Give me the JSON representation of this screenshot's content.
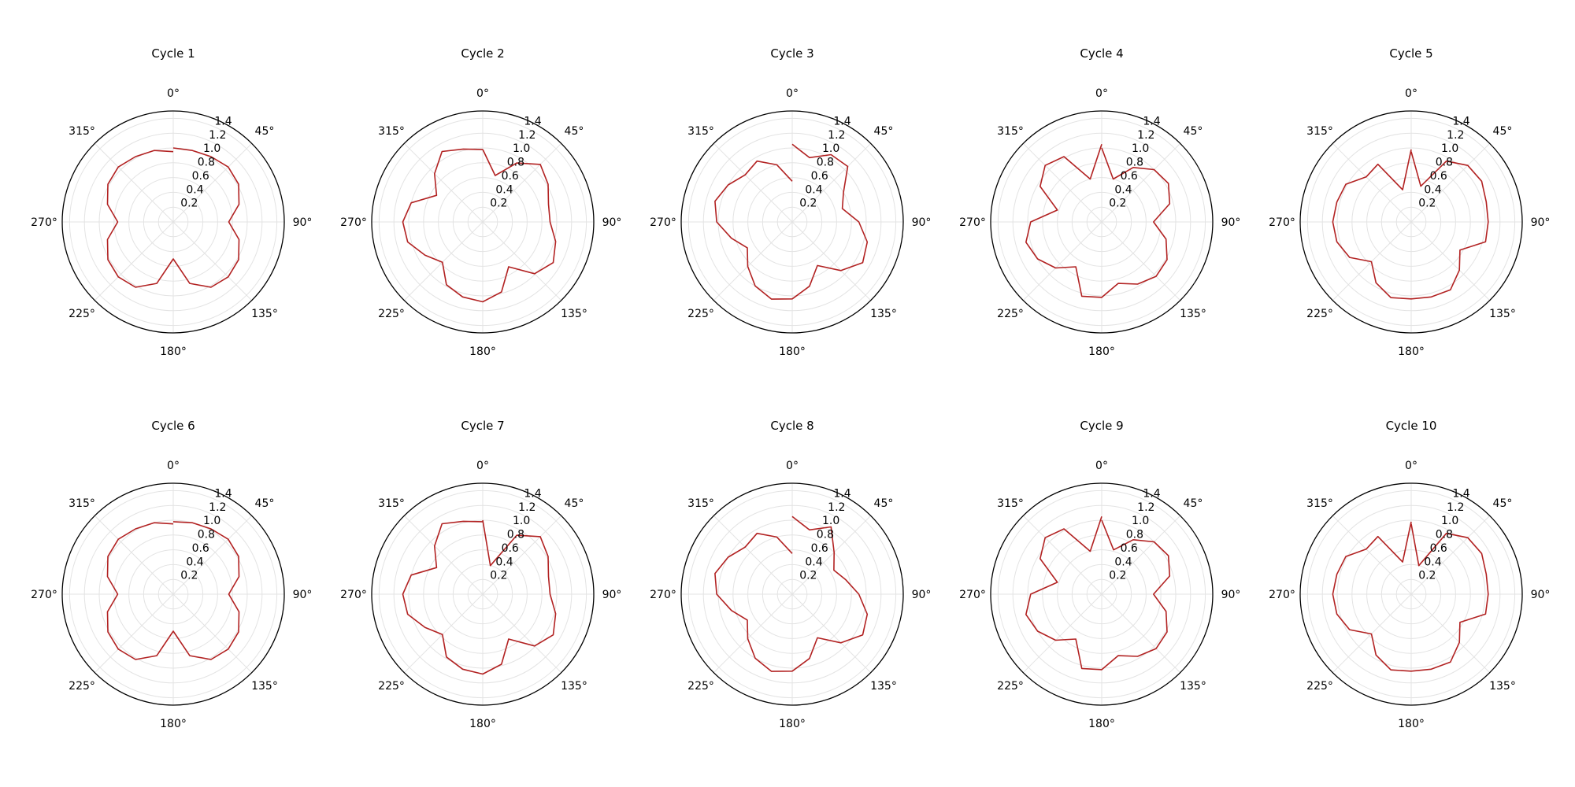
{
  "chart_data": {
    "type": "line",
    "projection": "polar",
    "theta_direction": "clockwise",
    "theta_zero": "top",
    "theta_tick_labels": [
      "0°",
      "45°",
      "90°",
      "135°",
      "180°",
      "225°",
      "270°",
      "315°"
    ],
    "r_tick_labels": [
      "0.2",
      "0.4",
      "0.6",
      "0.8",
      "1.0",
      "1.2",
      "1.4"
    ],
    "rlim": [
      0,
      1.5
    ],
    "grid": true,
    "line_color": "#b22222",
    "theta_deg": [
      0,
      15,
      30,
      45,
      60,
      75,
      90,
      105,
      120,
      135,
      150,
      165,
      180,
      195,
      210,
      225,
      240,
      255,
      270,
      285,
      300,
      315,
      330,
      345,
      360
    ],
    "panels": [
      {
        "title": "Cycle 1",
        "r": [
          1.0,
          1.0,
          1.02,
          1.05,
          1.02,
          0.92,
          0.75,
          0.92,
          1.02,
          1.05,
          1.02,
          0.86,
          0.5,
          0.86,
          1.02,
          1.05,
          1.02,
          0.92,
          0.75,
          0.92,
          1.02,
          1.05,
          1.02,
          1.0,
          0.95
        ]
      },
      {
        "title": "Cycle 2",
        "r": [
          0.98,
          0.65,
          0.92,
          1.1,
          1.02,
          0.92,
          0.91,
          1.02,
          1.1,
          0.99,
          0.7,
          0.98,
          1.08,
          1.05,
          0.98,
          0.77,
          0.9,
          1.05,
          1.08,
          1.0,
          0.72,
          0.92,
          1.1,
          1.02,
          0.98
        ]
      },
      {
        "title": "Cycle 3",
        "r": [
          1.05,
          0.9,
          1.05,
          1.06,
          0.8,
          0.7,
          0.9,
          1.05,
          1.1,
          0.93,
          0.68,
          0.9,
          1.04,
          1.08,
          1.0,
          0.85,
          0.7,
          0.85,
          1.02,
          1.08,
          1.0,
          0.9,
          0.95,
          0.8,
          0.55
        ]
      },
      {
        "title": "Cycle 4",
        "r": [
          1.0,
          0.6,
          0.85,
          1.0,
          1.04,
          0.95,
          0.7,
          0.9,
          1.02,
          1.04,
          0.97,
          0.86,
          1.02,
          1.04,
          0.7,
          0.88,
          1.0,
          1.06,
          0.96,
          0.62,
          0.96,
          1.08,
          1.02,
          0.6,
          1.05
        ]
      },
      {
        "title": "Cycle 5",
        "r": [
          0.95,
          0.5,
          0.95,
          1.08,
          1.1,
          1.05,
          1.04,
          1.04,
          0.76,
          0.92,
          1.06,
          1.05,
          1.04,
          1.06,
          0.95,
          0.76,
          0.96,
          1.04,
          1.06,
          1.04,
          1.02,
          0.86,
          0.9,
          0.45,
          0.98
        ]
      },
      {
        "title": "Cycle 6",
        "r": [
          0.98,
          1.0,
          1.02,
          1.05,
          1.02,
          0.92,
          0.75,
          0.92,
          1.02,
          1.05,
          1.02,
          0.86,
          0.5,
          0.86,
          1.02,
          1.05,
          1.02,
          0.92,
          0.75,
          0.92,
          1.02,
          1.05,
          1.02,
          1.0,
          0.95
        ]
      },
      {
        "title": "Cycle 7",
        "r": [
          1.0,
          0.4,
          0.92,
          1.1,
          1.02,
          0.92,
          0.91,
          1.02,
          1.1,
          0.99,
          0.7,
          0.98,
          1.08,
          1.05,
          0.98,
          0.77,
          0.9,
          1.05,
          1.08,
          1.0,
          0.72,
          0.92,
          1.1,
          1.02,
          0.98
        ]
      },
      {
        "title": "Cycle 8",
        "r": [
          1.05,
          0.9,
          1.05,
          0.8,
          0.65,
          0.75,
          0.9,
          1.05,
          1.1,
          0.93,
          0.68,
          0.9,
          1.04,
          1.08,
          1.0,
          0.85,
          0.7,
          0.85,
          1.02,
          1.08,
          1.0,
          0.9,
          0.95,
          0.8,
          0.55
        ]
      },
      {
        "title": "Cycle 9",
        "r": [
          1.0,
          0.62,
          0.85,
          1.0,
          1.04,
          0.95,
          0.7,
          0.9,
          1.02,
          1.04,
          0.97,
          0.86,
          1.02,
          1.04,
          0.7,
          0.88,
          1.0,
          1.06,
          0.96,
          0.62,
          0.96,
          1.08,
          1.02,
          0.6,
          1.05
        ]
      },
      {
        "title": "Cycle 10",
        "r": [
          0.95,
          0.4,
          0.95,
          1.08,
          1.1,
          1.05,
          1.04,
          1.04,
          0.76,
          0.92,
          1.06,
          1.05,
          1.04,
          1.06,
          0.95,
          0.76,
          0.96,
          1.04,
          1.06,
          1.04,
          1.02,
          0.86,
          0.9,
          0.45,
          0.98
        ]
      }
    ]
  }
}
